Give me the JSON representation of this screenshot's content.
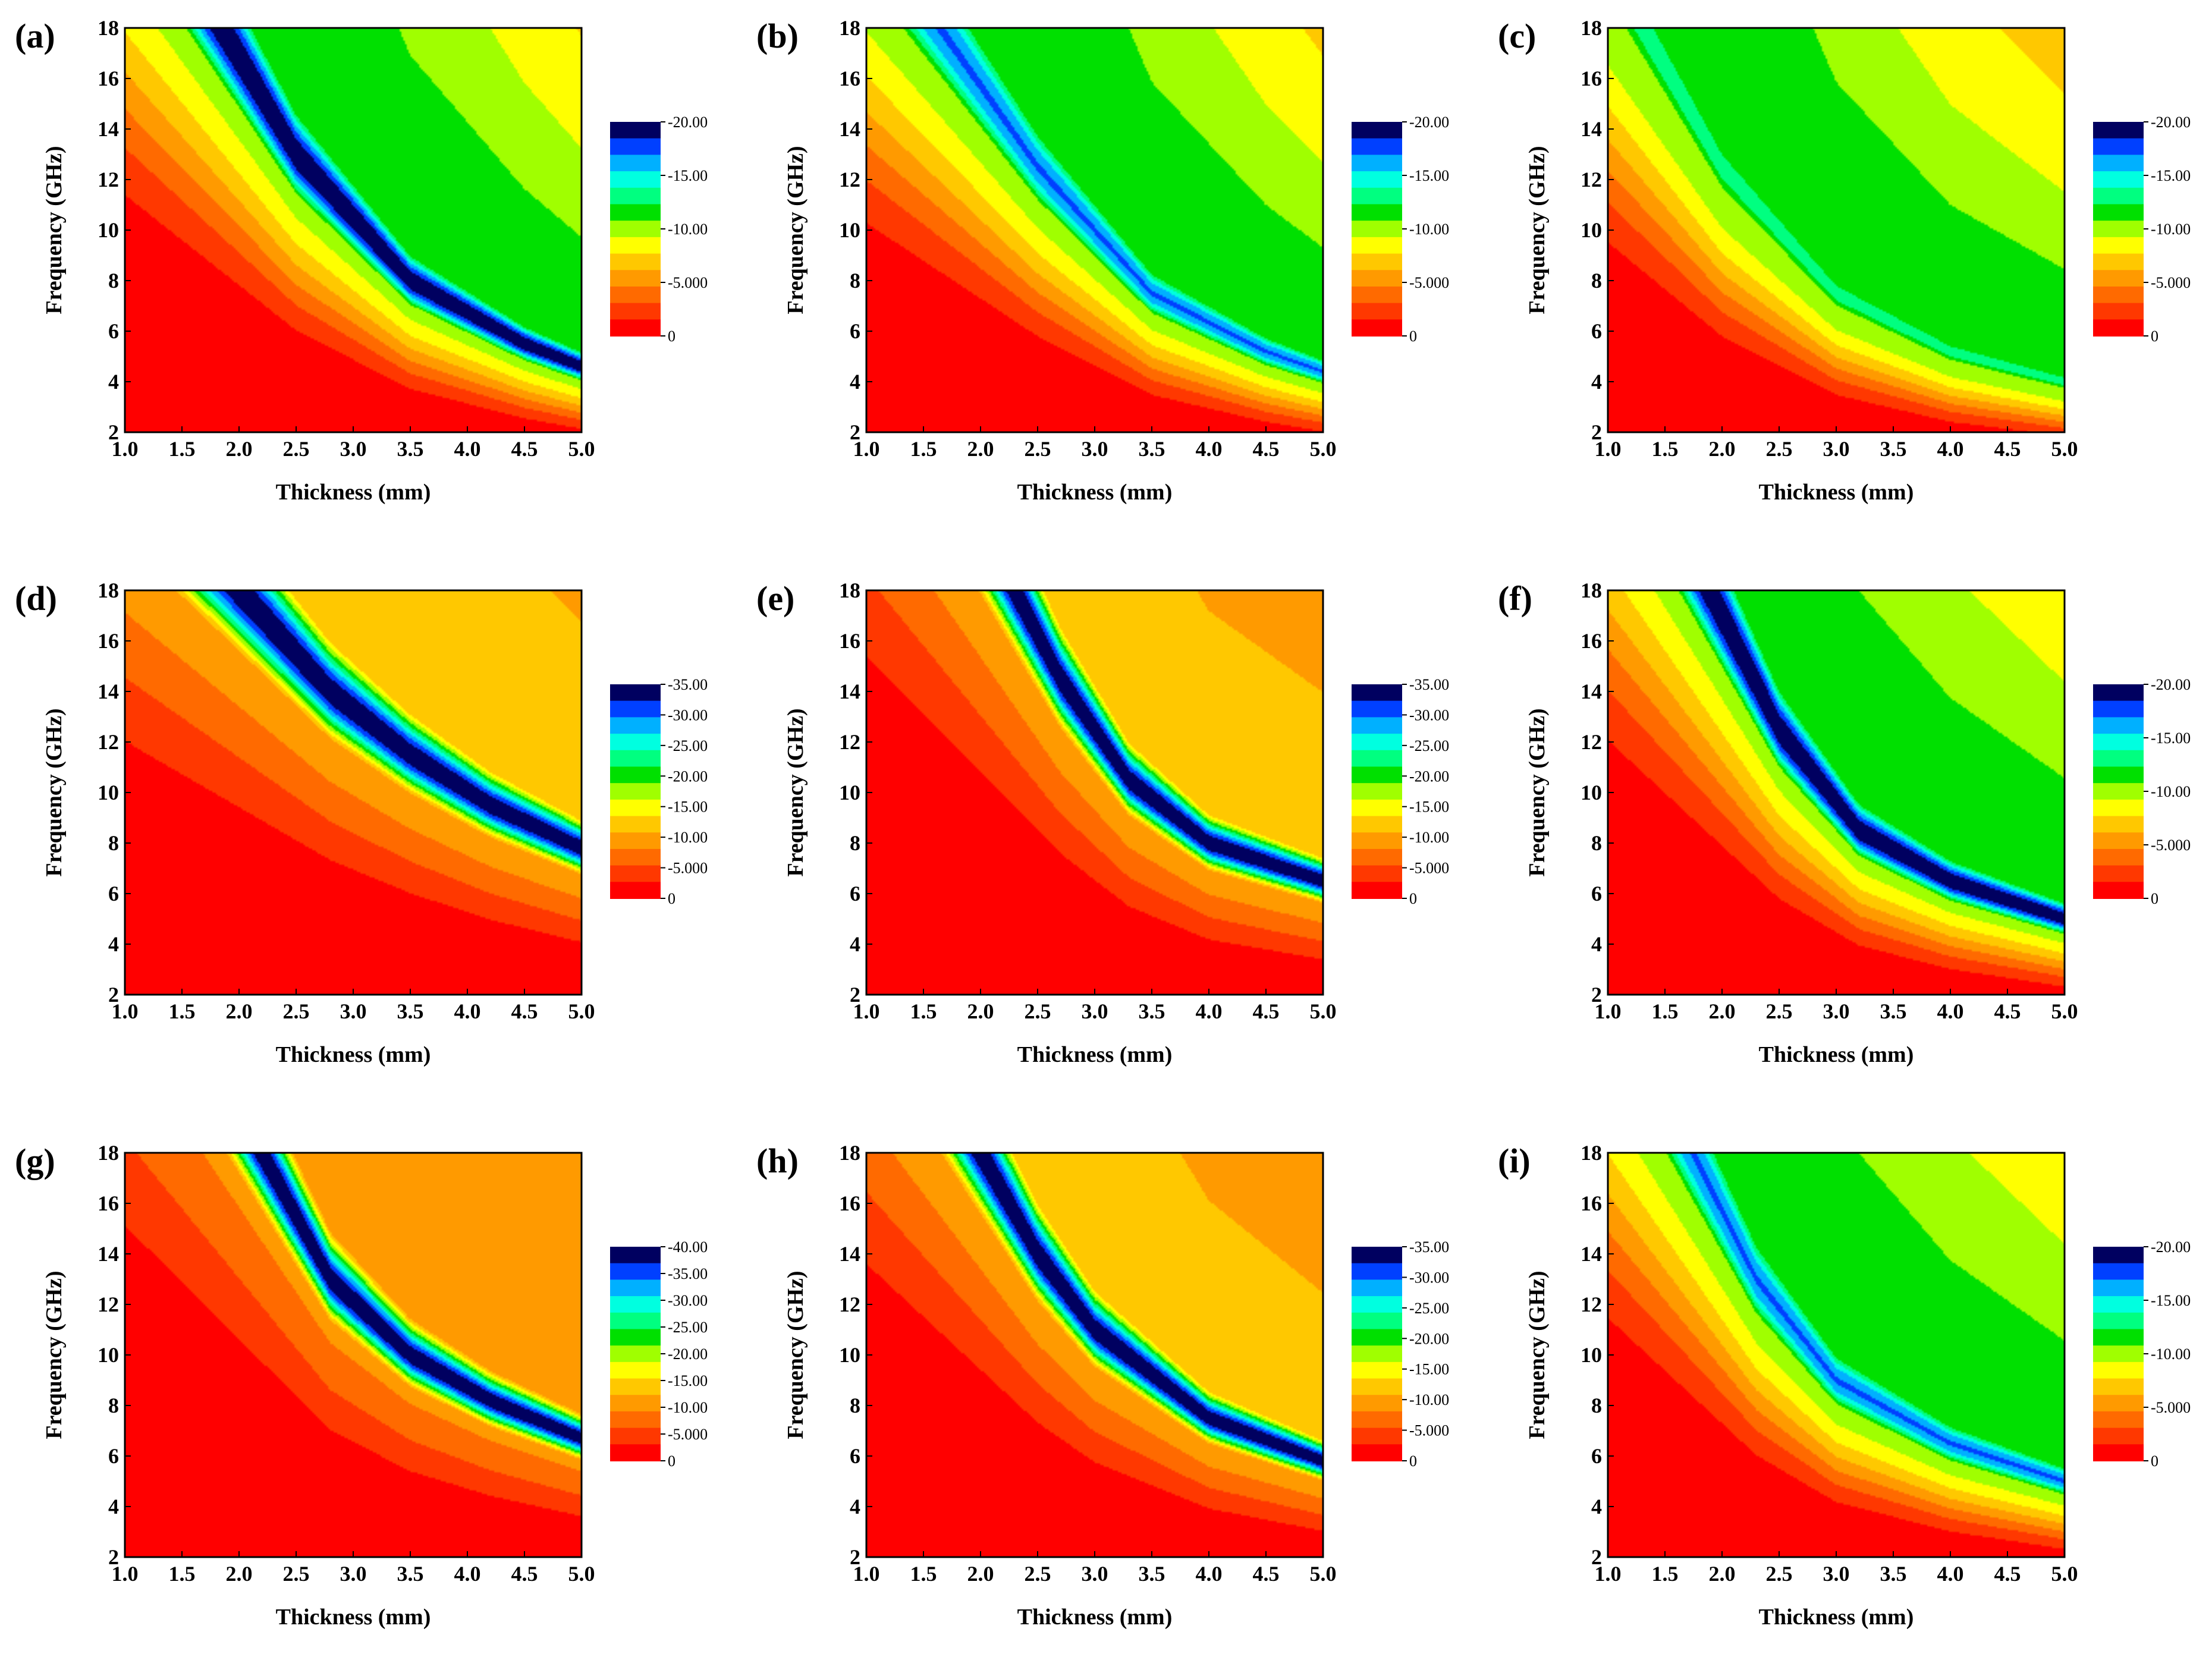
{
  "figure": {
    "xlabel": "Thickness (mm)",
    "ylabel": "Frequency (GHz)",
    "x_ticks": [
      "1.0",
      "1.5",
      "2.0",
      "2.5",
      "3.0",
      "3.5",
      "4.0",
      "4.5",
      "5.0"
    ],
    "y_ticks": [
      "2",
      "4",
      "6",
      "8",
      "10",
      "12",
      "14",
      "16",
      "18"
    ]
  },
  "colors": {
    "c0": "#ff0000",
    "c1": "#ff3800",
    "c2": "#ff6a00",
    "c3": "#ff9a00",
    "c4": "#ffc800",
    "c5": "#ffff00",
    "c6": "#a0ff00",
    "c7": "#00e000",
    "c8": "#00ff80",
    "c9": "#00ffe0",
    "c10": "#00b0ff",
    "c11": "#0040ff",
    "c12": "#000060"
  },
  "chart_data": [
    {
      "type": "heatmap",
      "panel": "(a)",
      "title": "",
      "xlabel": "Thickness (mm)",
      "ylabel": "Frequency (GHz)",
      "xlim": [
        1.0,
        5.0
      ],
      "ylim": [
        2,
        18
      ],
      "colorbar": {
        "range": [
          -20,
          0
        ],
        "tick_values": [
          -20,
          -15,
          -10,
          -5,
          0
        ],
        "tick_labels": [
          "-20.00",
          "-15.00",
          "-10.00",
          "-5.000",
          "0"
        ]
      },
      "min_rl_dB": -20,
      "valley_curve": {
        "thickness_mm": [
          1.85,
          2.5,
          3.5,
          4.5,
          5.0
        ],
        "frequency_GHz": [
          18.0,
          13.0,
          8.0,
          5.5,
          4.6
        ]
      },
      "valley_sigma": 0.55
    },
    {
      "type": "heatmap",
      "panel": "(b)",
      "title": "",
      "xlabel": "Thickness (mm)",
      "ylabel": "Frequency (GHz)",
      "xlim": [
        1.0,
        5.0
      ],
      "ylim": [
        2,
        18
      ],
      "colorbar": {
        "range": [
          -20,
          0
        ],
        "tick_values": [
          -20,
          -15,
          -10,
          -5,
          0
        ],
        "tick_labels": [
          "-20.00",
          "-15.00",
          "-10.00",
          "-5.000",
          "0"
        ]
      },
      "min_rl_dB": -17,
      "valley_curve": {
        "thickness_mm": [
          1.8,
          2.5,
          3.5,
          4.5,
          5.0
        ],
        "frequency_GHz": [
          17.0,
          12.5,
          7.5,
          5.2,
          4.4
        ]
      },
      "valley_sigma": 0.55
    },
    {
      "type": "heatmap",
      "panel": "(c)",
      "title": "",
      "xlabel": "Thickness (mm)",
      "ylabel": "Frequency (GHz)",
      "xlim": [
        1.0,
        5.0
      ],
      "ylim": [
        2,
        18
      ],
      "colorbar": {
        "range": [
          -20,
          0
        ],
        "tick_values": [
          -20,
          -15,
          -10,
          -5,
          0
        ],
        "tick_labels": [
          "-20.00",
          "-15.00",
          "-10.00",
          "-5.000",
          "0"
        ]
      },
      "min_rl_dB": -13,
      "valley_curve": {
        "thickness_mm": [
          1.5,
          2.0,
          3.0,
          4.0,
          5.0
        ],
        "frequency_GHz": [
          16.5,
          12.5,
          7.5,
          5.2,
          4.0
        ]
      },
      "valley_sigma": 0.5
    },
    {
      "type": "heatmap",
      "panel": "(d)",
      "title": "",
      "xlabel": "Thickness (mm)",
      "ylabel": "Frequency (GHz)",
      "xlim": [
        1.0,
        5.0
      ],
      "ylim": [
        2,
        18
      ],
      "colorbar": {
        "range": [
          -35,
          0
        ],
        "tick_values": [
          -35,
          -30,
          -25,
          -20,
          -15,
          -10,
          -5,
          0
        ],
        "tick_labels": [
          "-35.00",
          "-30.00",
          "-25.00",
          "-20.00",
          "-15.00",
          "-10.00",
          "-5.000",
          "0"
        ]
      },
      "min_rl_dB": -35,
      "valley_curve": {
        "thickness_mm": [
          2.0,
          2.8,
          3.5,
          4.2,
          5.0
        ],
        "frequency_GHz": [
          18.0,
          14.0,
          11.5,
          9.5,
          7.8
        ]
      },
      "valley_sigma": 0.45
    },
    {
      "type": "heatmap",
      "panel": "(e)",
      "title": "",
      "xlabel": "Thickness (mm)",
      "ylabel": "Frequency (GHz)",
      "xlim": [
        1.0,
        5.0
      ],
      "ylim": [
        2,
        18
      ],
      "colorbar": {
        "range": [
          -35,
          0
        ],
        "tick_values": [
          -35,
          -30,
          -25,
          -20,
          -15,
          -10,
          -5,
          0
        ],
        "tick_labels": [
          "-35.00",
          "-30.00",
          "-25.00",
          "-20.00",
          "-15.00",
          "-10.00",
          "-5.000",
          "0"
        ]
      },
      "min_rl_dB": -35,
      "valley_curve": {
        "thickness_mm": [
          2.3,
          2.7,
          3.3,
          4.0,
          5.0
        ],
        "frequency_GHz": [
          18.0,
          14.5,
          10.5,
          8.0,
          6.5
        ]
      },
      "valley_sigma": 0.45
    },
    {
      "type": "heatmap",
      "panel": "(f)",
      "title": "",
      "xlabel": "Thickness (mm)",
      "ylabel": "Frequency (GHz)",
      "xlim": [
        1.0,
        5.0
      ],
      "ylim": [
        2,
        18
      ],
      "colorbar": {
        "range": [
          -20,
          0
        ],
        "tick_values": [
          -20,
          -15,
          -10,
          -5,
          0
        ],
        "tick_labels": [
          "-20.00",
          "-15.00",
          "-10.00",
          "-5.000",
          "0"
        ]
      },
      "min_rl_dB": -20,
      "valley_curve": {
        "thickness_mm": [
          2.0,
          2.5,
          3.2,
          4.0,
          5.0
        ],
        "frequency_GHz": [
          17.0,
          12.5,
          8.5,
          6.5,
          5.0
        ]
      },
      "valley_sigma": 0.55
    },
    {
      "type": "heatmap",
      "panel": "(g)",
      "title": "",
      "xlabel": "Thickness (mm)",
      "ylabel": "Frequency (GHz)",
      "xlim": [
        1.0,
        5.0
      ],
      "ylim": [
        2,
        18
      ],
      "colorbar": {
        "range": [
          -40,
          0
        ],
        "tick_values": [
          -40,
          -35,
          -30,
          -25,
          -20,
          -15,
          -10,
          -5,
          0
        ],
        "tick_labels": [
          "-40.00",
          "-35.00",
          "-30.00",
          "-25.00",
          "-20.00",
          "-15.00",
          "-10.00",
          "-5.000",
          "0"
        ]
      },
      "min_rl_dB": -40,
      "valley_curve": {
        "thickness_mm": [
          2.2,
          2.8,
          3.5,
          4.2,
          5.0
        ],
        "frequency_GHz": [
          18.0,
          13.0,
          10.0,
          8.2,
          6.7
        ]
      },
      "valley_sigma": 0.42
    },
    {
      "type": "heatmap",
      "panel": "(h)",
      "title": "",
      "xlabel": "Thickness (mm)",
      "ylabel": "Frequency (GHz)",
      "xlim": [
        1.0,
        5.0
      ],
      "ylim": [
        2,
        18
      ],
      "colorbar": {
        "range": [
          -35,
          0
        ],
        "tick_values": [
          -35,
          -30,
          -25,
          -20,
          -15,
          -10,
          -5,
          0
        ],
        "tick_labels": [
          "-35.00",
          "-30.00",
          "-25.00",
          "-20.00",
          "-15.00",
          "-10.00",
          "-5.000",
          "0"
        ]
      },
      "min_rl_dB": -35,
      "valley_curve": {
        "thickness_mm": [
          2.0,
          2.5,
          3.0,
          4.0,
          5.0
        ],
        "frequency_GHz": [
          18.0,
          14.0,
          11.0,
          7.5,
          5.8
        ]
      },
      "valley_sigma": 0.45
    },
    {
      "type": "heatmap",
      "panel": "(i)",
      "title": "",
      "xlabel": "Thickness (mm)",
      "ylabel": "Frequency (GHz)",
      "xlim": [
        1.0,
        5.0
      ],
      "ylim": [
        2,
        18
      ],
      "colorbar": {
        "range": [
          -20,
          0
        ],
        "tick_values": [
          -20,
          -15,
          -10,
          -5,
          0
        ],
        "tick_labels": [
          "-20.00",
          "-15.00",
          "-10.00",
          "-5.000",
          "0"
        ]
      },
      "min_rl_dB": -17,
      "valley_curve": {
        "thickness_mm": [
          1.8,
          2.3,
          3.0,
          4.0,
          5.0
        ],
        "frequency_GHz": [
          17.5,
          13.0,
          9.0,
          6.5,
          5.0
        ]
      },
      "valley_sigma": 0.55
    }
  ]
}
